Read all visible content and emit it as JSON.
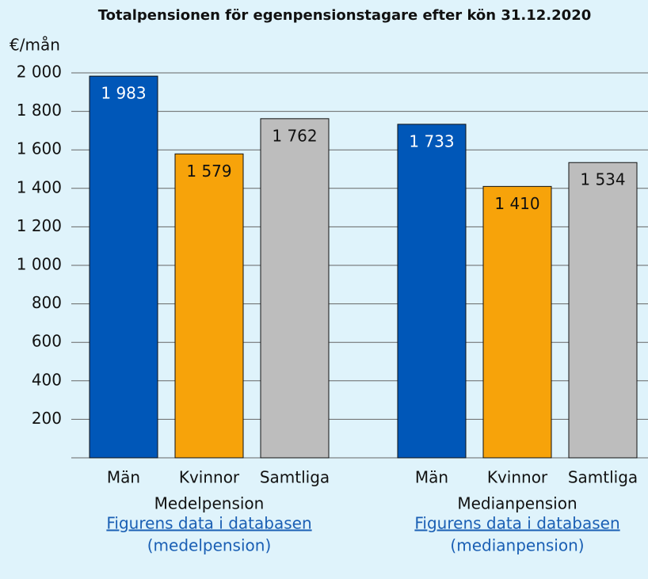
{
  "chart_data": {
    "type": "bar",
    "title": "Totalpensionen för egenpensionstagare efter kön 31.12.2020",
    "y_unit": "€/mån",
    "categories": [
      "Män",
      "Kvinnor",
      "Samtliga"
    ],
    "colors": [
      "#0057b8",
      "#f7a30a",
      "#bdbdbd"
    ],
    "value_label_colors": [
      "#ffffff",
      "#111111",
      "#111111"
    ],
    "groups": [
      {
        "name": "Medelpension",
        "values": [
          1983,
          1579,
          1762
        ],
        "value_labels": [
          "1 983",
          "1 579",
          "1 762"
        ]
      },
      {
        "name": "Medianpension",
        "values": [
          1733,
          1410,
          1534
        ],
        "value_labels": [
          "1 733",
          "1 410",
          "1 534"
        ]
      }
    ],
    "ylim": [
      0,
      2000
    ],
    "yticks": [
      200,
      400,
      600,
      800,
      {
        "value": 1000,
        "label": "1 000"
      },
      {
        "value": 1200,
        "label": "1 200"
      },
      {
        "value": 1400,
        "label": "1 400"
      },
      {
        "value": 1600,
        "label": "1 600"
      },
      {
        "value": 1800,
        "label": "1 800"
      },
      {
        "value": 2000,
        "label": "2 000"
      }
    ],
    "grid": true,
    "links": [
      {
        "text": "Figurens data i databasen",
        "subtext": "(medelpension)"
      },
      {
        "text": "Figurens data i databasen",
        "subtext": "(medianpension)"
      }
    ]
  }
}
